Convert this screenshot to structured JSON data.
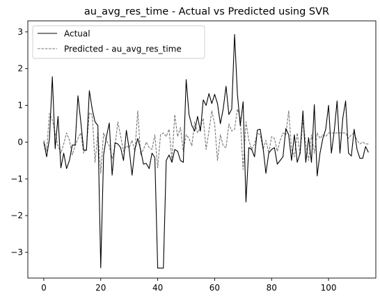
{
  "chart_data": {
    "type": "line",
    "title": "au_avg_res_time - Actual vs Predicted using SVR",
    "xlabel": "",
    "ylabel": "",
    "xlim": [
      -5.6,
      116.6
    ],
    "ylim": [
      -3.7,
      3.3
    ],
    "xticks": [
      0,
      20,
      40,
      60,
      80,
      100
    ],
    "yticks": [
      -3,
      -2,
      -1,
      0,
      1,
      2,
      3
    ],
    "tick_labels": {
      "x": [
        "0",
        "20",
        "40",
        "60",
        "80",
        "100"
      ],
      "y": [
        "−3",
        "−2",
        "−1",
        "0",
        "1",
        "2",
        "3"
      ]
    },
    "grid": false,
    "legend_position": "top-left",
    "series": [
      {
        "name": "Actual",
        "color": "#000000",
        "style": "solid",
        "values": [
          0.0,
          -0.4,
          0.1,
          1.78,
          -0.18,
          0.7,
          -0.7,
          -0.3,
          -0.72,
          -0.5,
          -0.08,
          -0.08,
          1.26,
          0.55,
          -0.22,
          -0.22,
          1.4,
          0.9,
          0.55,
          0.45,
          -3.42,
          -0.35,
          0.15,
          0.52,
          -0.9,
          -0.02,
          -0.05,
          -0.15,
          -0.5,
          0.32,
          -0.2,
          -0.9,
          -0.2,
          0.1,
          -0.2,
          -0.6,
          -0.58,
          -0.72,
          -0.3,
          -0.42,
          -3.43,
          -3.43,
          -3.43,
          -0.5,
          -0.35,
          -0.55,
          -0.2,
          -0.25,
          -0.5,
          -0.55,
          1.7,
          0.75,
          0.45,
          0.3,
          0.7,
          0.3,
          1.15,
          1.0,
          1.32,
          1.05,
          1.3,
          1.05,
          0.5,
          0.9,
          1.52,
          0.75,
          0.9,
          2.93,
          1.3,
          0.45,
          1.1,
          -1.63,
          -0.15,
          -0.2,
          -0.4,
          0.33,
          0.35,
          -0.15,
          -0.85,
          -0.3,
          -0.2,
          -0.15,
          -0.6,
          -0.5,
          -0.4,
          0.37,
          0.2,
          -0.5,
          0.2,
          -0.55,
          -0.3,
          0.85,
          -0.55,
          0.12,
          -0.55,
          1.02,
          -0.92,
          -0.3,
          0.1,
          0.35,
          1.0,
          -0.3,
          0.3,
          1.12,
          -0.3,
          0.65,
          1.12,
          -0.3,
          -0.38,
          0.35,
          -0.2,
          -0.44,
          -0.44,
          -0.12,
          -0.28
        ]
      },
      {
        "name": "Predicted - au_avg_res_time",
        "color": "#777777",
        "style": "dashed",
        "values": [
          0.05,
          -0.25,
          0.78,
          0.6,
          0.25,
          -0.1,
          -0.3,
          -0.05,
          0.25,
          0.05,
          -0.35,
          -0.1,
          0.1,
          0.25,
          -0.3,
          -0.15,
          0.8,
          0.75,
          -0.55,
          0.25,
          -0.85,
          0.25,
          0.05,
          -0.1,
          -0.45,
          -0.12,
          0.55,
          0.15,
          -0.25,
          -0.1,
          -0.15,
          0.05,
          -0.25,
          0.85,
          -0.35,
          -0.2,
          0.0,
          -0.15,
          -0.2,
          0.2,
          -0.7,
          0.2,
          0.25,
          0.15,
          0.35,
          -0.5,
          0.75,
          0.15,
          0.4,
          -0.25,
          0.2,
          0.1,
          -0.1,
          0.55,
          0.25,
          0.4,
          0.65,
          -0.2,
          0.3,
          0.85,
          0.5,
          -0.5,
          0.2,
          -0.1,
          -0.15,
          0.5,
          0.3,
          0.35,
          0.9,
          0.65,
          -0.75,
          0.55,
          0.05,
          -0.2,
          -0.05,
          0.25,
          0.2,
          -0.2,
          0.05,
          -0.3,
          0.15,
          0.1,
          -0.25,
          0.05,
          0.25,
          0.2,
          0.85,
          -0.2,
          -0.4,
          0.25,
          -0.35,
          0.6,
          -0.05,
          -0.5,
          0.2,
          -0.3,
          0.25,
          0.1,
          0.2,
          0.15,
          0.25,
          0.25,
          0.25,
          0.25,
          0.25,
          0.25,
          0.25,
          0.1,
          0.2,
          0.25,
          0.05,
          -0.05,
          0.0,
          -0.05,
          -0.05
        ]
      }
    ]
  }
}
